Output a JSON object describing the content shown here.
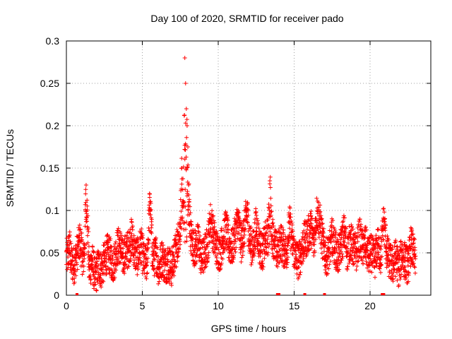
{
  "chart_data": {
    "type": "scatter",
    "title": "Day 100 of 2020, SRMTID for receiver pado",
    "xlabel": "GPS time / hours",
    "ylabel": "SRMTID / TECUs",
    "xlim": [
      0,
      24
    ],
    "ylim": [
      0,
      0.3
    ],
    "xticks": [
      0,
      5,
      10,
      15,
      20
    ],
    "yticks": [
      0,
      0.05,
      0.1,
      0.15,
      0.2,
      0.25,
      0.3
    ],
    "xtick_labels": [
      "0",
      "5",
      "10",
      "15",
      "20"
    ],
    "ytick_labels": [
      "0",
      "0.05",
      "0.1",
      "0.15",
      "0.2",
      "0.25",
      "0.3"
    ],
    "grid": true,
    "marker": "+",
    "color": "#ff0000",
    "data_range_hours": [
      0,
      23
    ],
    "series": [
      {
        "name": "SRMTID",
        "x": [
          0.1,
          0.2,
          0.3,
          0.5,
          0.7,
          0.9,
          1.1,
          1.2,
          1.3,
          1.5,
          1.7,
          1.9,
          2.1,
          2.3,
          2.5,
          2.7,
          2.9,
          3.1,
          3.3,
          3.5,
          3.7,
          3.9,
          4.1,
          4.3,
          4.5,
          4.7,
          4.9,
          5.1,
          5.3,
          5.5,
          5.7,
          5.9,
          6.1,
          6.3,
          6.5,
          6.7,
          6.9,
          7.1,
          7.3,
          7.5,
          7.6,
          7.7,
          7.8,
          7.85,
          7.9,
          7.95,
          8.0,
          8.05,
          8.1,
          8.2,
          8.3,
          8.5,
          8.7,
          8.9,
          9.1,
          9.3,
          9.5,
          9.7,
          9.9,
          10.1,
          10.3,
          10.5,
          10.7,
          10.9,
          11.1,
          11.3,
          11.5,
          11.7,
          11.9,
          12.1,
          12.3,
          12.5,
          12.7,
          12.9,
          13.1,
          13.3,
          13.4,
          13.5,
          13.7,
          13.9,
          14.1,
          14.3,
          14.5,
          14.7,
          14.9,
          15.1,
          15.3,
          15.5,
          15.7,
          15.9,
          16.1,
          16.3,
          16.5,
          16.7,
          16.9,
          17.1,
          17.3,
          17.5,
          17.7,
          17.9,
          18.1,
          18.3,
          18.5,
          18.7,
          18.9,
          19.1,
          19.3,
          19.5,
          19.7,
          19.9,
          20.1,
          20.3,
          20.5,
          20.7,
          20.9,
          21.1,
          21.3,
          21.5,
          21.7,
          21.9,
          22.1,
          22.3,
          22.5,
          22.7,
          22.9
        ],
        "y": [
          0.045,
          0.06,
          0.04,
          0.035,
          0.05,
          0.065,
          0.04,
          0.055,
          0.13,
          0.03,
          0.04,
          0.02,
          0.035,
          0.03,
          0.04,
          0.05,
          0.045,
          0.035,
          0.055,
          0.06,
          0.045,
          0.05,
          0.055,
          0.07,
          0.05,
          0.045,
          0.06,
          0.04,
          0.035,
          0.11,
          0.04,
          0.05,
          0.03,
          0.045,
          0.035,
          0.04,
          0.03,
          0.045,
          0.06,
          0.08,
          0.15,
          0.11,
          0.28,
          0.25,
          0.22,
          0.2,
          0.175,
          0.13,
          0.095,
          0.07,
          0.06,
          0.055,
          0.065,
          0.04,
          0.05,
          0.06,
          0.09,
          0.07,
          0.055,
          0.05,
          0.065,
          0.08,
          0.06,
          0.055,
          0.07,
          0.09,
          0.06,
          0.075,
          0.1,
          0.06,
          0.055,
          0.085,
          0.06,
          0.05,
          0.065,
          0.07,
          0.135,
          0.08,
          0.06,
          0.05,
          0.065,
          0.055,
          0.05,
          0.085,
          0.06,
          0.045,
          0.04,
          0.055,
          0.065,
          0.07,
          0.08,
          0.06,
          0.1,
          0.085,
          0.06,
          0.045,
          0.05,
          0.07,
          0.055,
          0.045,
          0.06,
          0.075,
          0.05,
          0.065,
          0.055,
          0.05,
          0.07,
          0.055,
          0.06,
          0.045,
          0.05,
          0.04,
          0.06,
          0.045,
          0.09,
          0.05,
          0.04,
          0.035,
          0.045,
          0.03,
          0.05,
          0.04,
          0.035,
          0.06,
          0.045
        ]
      }
    ],
    "baseline_markers_x": [
      0.7,
      13.9,
      14.0,
      15.7,
      17.0,
      20.8,
      20.9
    ]
  }
}
